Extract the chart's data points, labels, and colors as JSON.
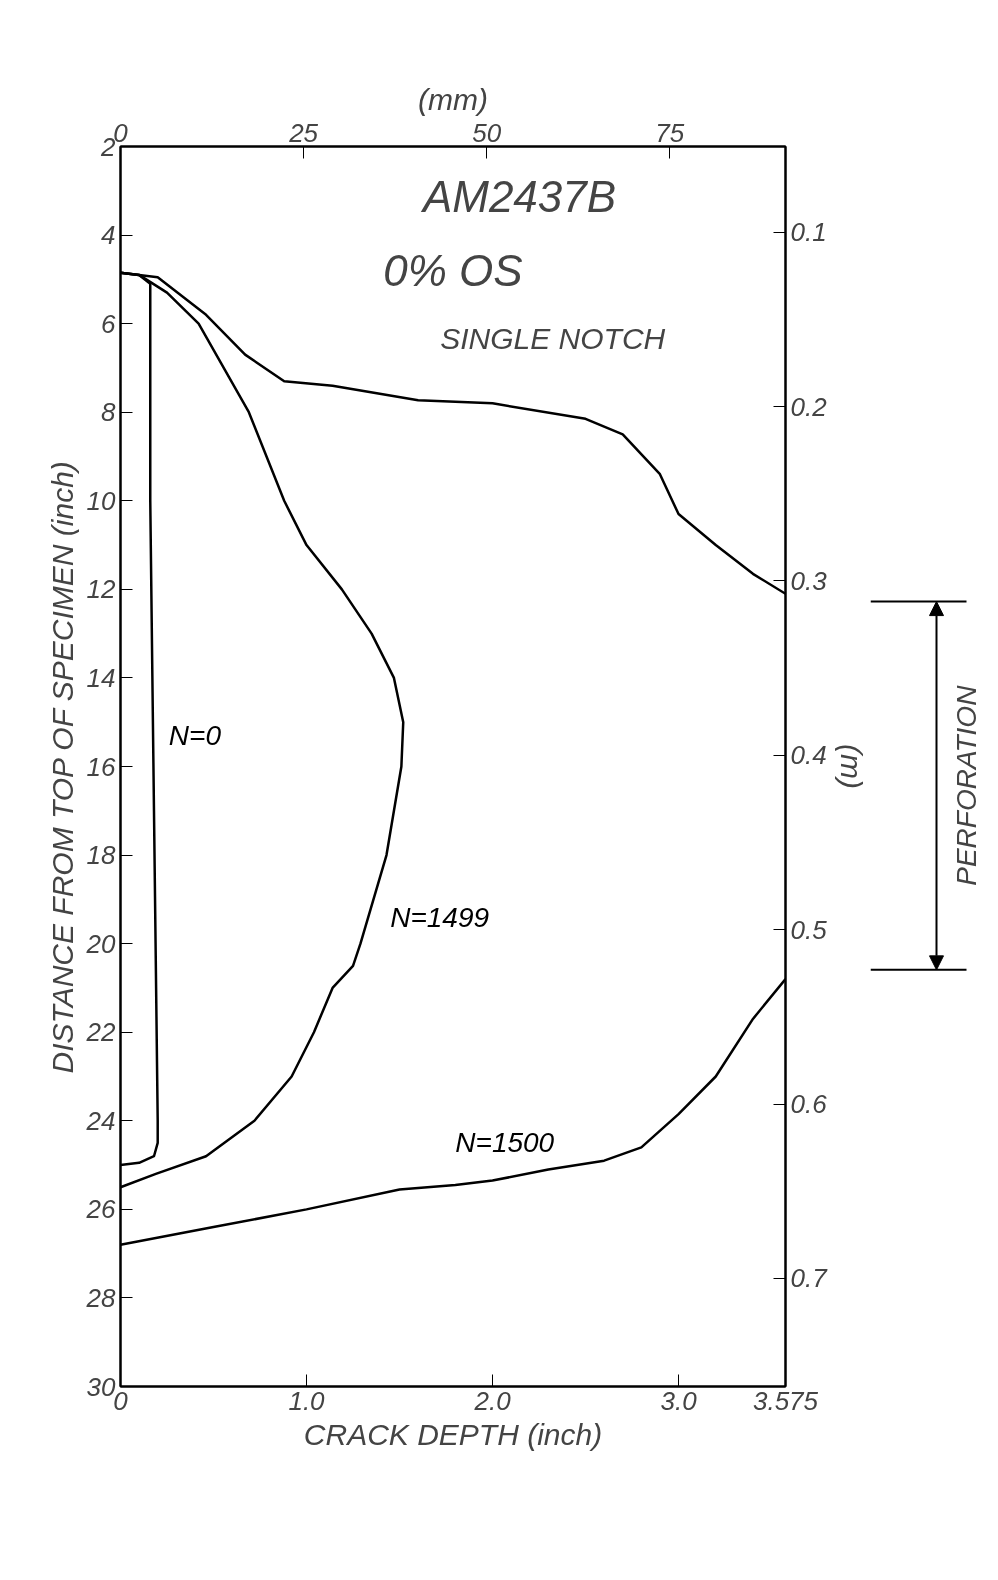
{
  "chart_data": {
    "type": "line",
    "title": "AM2437B",
    "subtitle": "0% OS",
    "xlabel": "CRACK DEPTH (inch)",
    "ylabel": "DISTANCE FROM TOP OF SPECIMEN (inch)",
    "x2label": "(mm)",
    "y2label": "(m)",
    "xlim": [
      0,
      3.575
    ],
    "xticks": [
      0,
      {
        "value": 1,
        "label": "1.0"
      },
      {
        "value": 2,
        "label": "2.0"
      },
      {
        "value": 3,
        "label": "3.0"
      },
      3.575
    ],
    "ylim": [
      30,
      2
    ],
    "yticks": [
      2,
      4,
      6,
      8,
      10,
      12,
      14,
      16,
      18,
      20,
      22,
      24,
      26,
      28,
      30
    ],
    "x2lim": [
      0,
      90.8
    ],
    "x2ticks": [
      0,
      25,
      50,
      75
    ],
    "y2lim": [
      0.762,
      0.0508
    ],
    "y2ticks": [
      0.1,
      0.2,
      0.3,
      0.4,
      0.5,
      0.6,
      0.7
    ],
    "grid": false,
    "line_style": "solid",
    "marker": "none",
    "series": [
      {
        "name": "N=0",
        "color": "#000000",
        "x": [
          0,
          0.1,
          0.16,
          0.16,
          0.18,
          0.2,
          0.2,
          0.18,
          0.1,
          0
        ],
        "values": [
          4.85,
          4.9,
          5.1,
          10,
          17,
          24.0,
          24.5,
          24.8,
          24.95,
          25.0
        ]
      },
      {
        "name": "N=1499",
        "color": "#000000",
        "x": [
          0,
          0.1,
          0.25,
          0.42,
          0.69,
          0.88,
          1.0,
          1.19,
          1.35,
          1.47,
          1.52,
          1.51,
          1.43,
          1.29,
          1.25,
          1.14,
          1.04,
          0.92,
          0.72,
          0.46,
          0.19,
          0
        ],
        "values": [
          4.85,
          4.9,
          5.3,
          6,
          8,
          10,
          11,
          12,
          13,
          14,
          15,
          16,
          18,
          20,
          20.5,
          21,
          22,
          23,
          24,
          24.8,
          25.2,
          25.5
        ]
      },
      {
        "color": "#000000",
        "x": [
          0,
          0.2,
          0.46,
          0.67,
          0.88,
          1.14,
          1.6,
          2.0,
          2.5,
          2.7,
          2.9,
          3.0,
          3.2,
          3.4,
          3.575
        ],
        "values": [
          4.85,
          4.95,
          5.8,
          6.7,
          7.3,
          7.4,
          7.73,
          7.8,
          8.15,
          8.5,
          9.4,
          10.3,
          11.0,
          11.65,
          12.1
        ]
      },
      {
        "name": "N=1500",
        "color": "#000000",
        "x": [
          0,
          0.5,
          1.0,
          1.5,
          1.8,
          2.0,
          2.3,
          2.6,
          2.8,
          3.0,
          3.2,
          3.4,
          3.575
        ],
        "values": [
          26.8,
          26.4,
          26.0,
          25.55,
          25.45,
          25.35,
          25.1,
          24.9,
          24.6,
          23.85,
          23.0,
          21.7,
          20.8
        ]
      }
    ],
    "annotations": [
      "SINGLE NOTCH",
      "PERFORATION"
    ]
  }
}
